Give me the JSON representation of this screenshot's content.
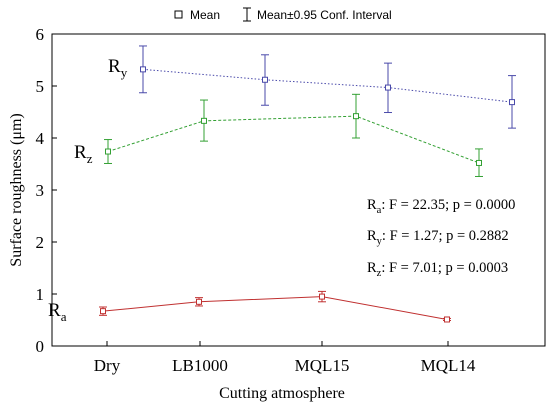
{
  "chart_data": {
    "type": "line",
    "categories": [
      "Dry",
      "LB1000",
      "MQL15",
      "MQL14"
    ],
    "xlabel": "Cutting atmosphere",
    "ylabel": "Surface roughness (μm)",
    "ylim": [
      0,
      6
    ],
    "yticks": [
      "0",
      "1",
      "2",
      "3",
      "4",
      "5",
      "6"
    ],
    "grid": false,
    "legend": {
      "placement": "top-center",
      "entries": [
        {
          "marker": "square",
          "label": "Mean"
        },
        {
          "marker": "errorbar",
          "label": "Mean±0.95 Conf. Interval"
        }
      ]
    },
    "series": [
      {
        "label_main": "R",
        "label_sub": "y",
        "color": "#4a4aaa",
        "line_style": "dotted",
        "means": [
          5.32,
          5.12,
          4.97,
          4.69
        ],
        "lower": [
          4.87,
          4.63,
          4.49,
          4.19
        ],
        "upper": [
          5.77,
          5.6,
          5.44,
          5.2
        ]
      },
      {
        "label_main": "R",
        "label_sub": "z",
        "color": "#33a033",
        "line_style": "dashed",
        "means": [
          3.74,
          4.33,
          4.42,
          3.52
        ],
        "lower": [
          3.51,
          3.94,
          4.0,
          3.26
        ],
        "upper": [
          3.97,
          4.73,
          4.84,
          3.79
        ]
      },
      {
        "label_main": "R",
        "label_sub": "a",
        "color": "#c03030",
        "line_style": "solid",
        "means": [
          0.67,
          0.85,
          0.95,
          0.51
        ],
        "lower": [
          0.59,
          0.77,
          0.85,
          0.49
        ],
        "upper": [
          0.75,
          0.93,
          1.05,
          0.53
        ]
      }
    ],
    "annotations": [
      {
        "main": "R",
        "sub": "a",
        "text": ": F = 22.35; p = 0.0000"
      },
      {
        "main": "R",
        "sub": "y",
        "text": ": F = 1.27; p = 0.2882"
      },
      {
        "main": "R",
        "sub": "z",
        "text": ": F = 7.01; p = 0.0003"
      }
    ]
  }
}
